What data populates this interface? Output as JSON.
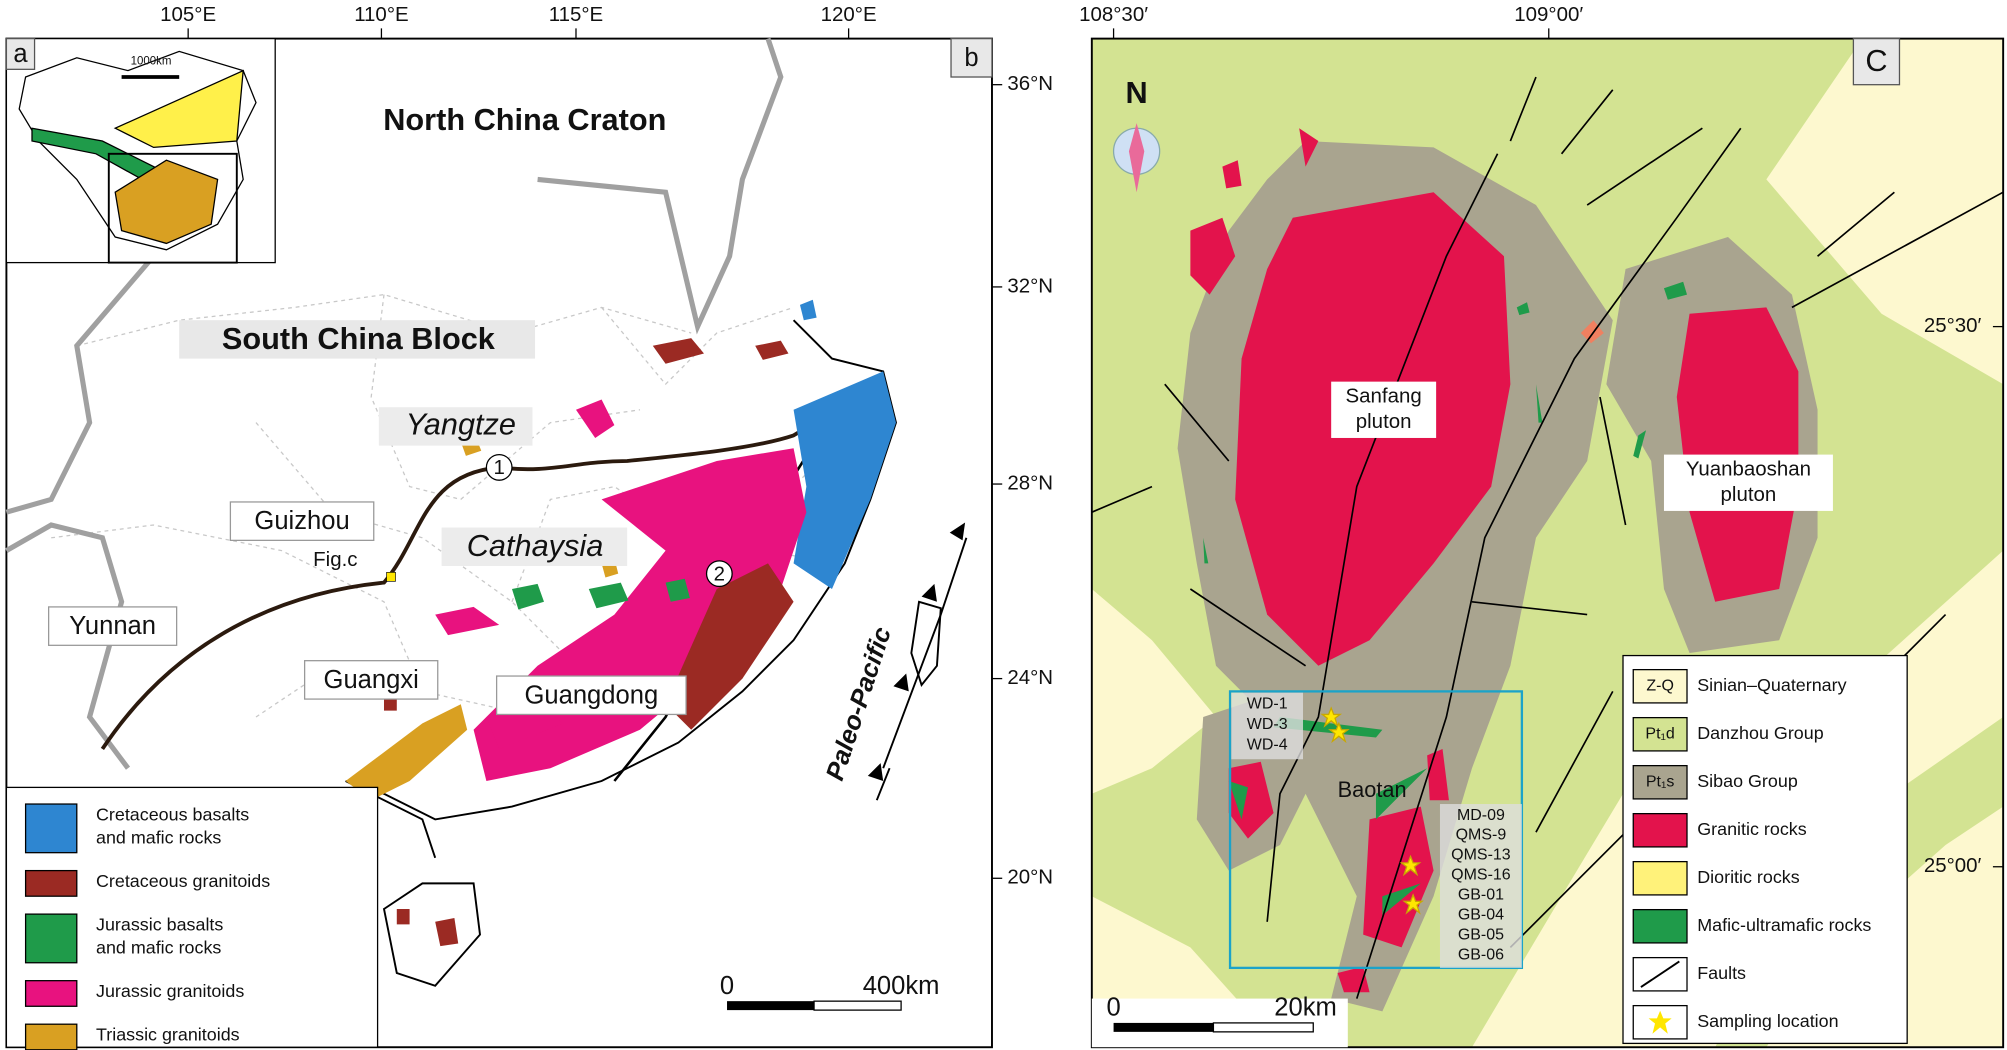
{
  "panel_b": {
    "label_a": "a",
    "label_b": "b",
    "inset_scale": "1000km",
    "lon_ticks": [
      "105°E",
      "110°E",
      "115°E",
      "120°E"
    ],
    "lat_ticks": [
      "36°N",
      "32°N",
      "28°N",
      "24°N",
      "20°N"
    ],
    "places": {
      "craton": "North China Craton",
      "block": "South China Block",
      "yangtze": "Yangtze",
      "cathaysia": "Cathaysia",
      "guizhou": "Guizhou",
      "yunnan": "Yunnan",
      "guangxi": "Guangxi",
      "guangdong": "Guangdong",
      "figc": "Fig.c",
      "pacific": "Paleo-Pacific",
      "one": "1",
      "two": "2"
    },
    "scale": [
      "0",
      "400km"
    ],
    "legend": [
      {
        "label": [
          "Cretaceous basalts",
          "and mafic rocks"
        ],
        "color": "#2e86d1"
      },
      {
        "label": [
          "Cretaceous granitoids"
        ],
        "color": "#9b2a23"
      },
      {
        "label": [
          "Jurassic basalts",
          "and mafic rocks"
        ],
        "color": "#1f9b4a"
      },
      {
        "label": [
          "Jurassic granitoids"
        ],
        "color": "#e8127f"
      },
      {
        "label": [
          "Triassic granitoids"
        ],
        "color": "#d9a022"
      }
    ]
  },
  "panel_c": {
    "label": "C",
    "north": "N",
    "lon_ticks": [
      "108°30′",
      "109°00′"
    ],
    "lat_ticks": [
      "25°30′",
      "25°00′"
    ],
    "sanfang": [
      "Sanfang",
      "pluton"
    ],
    "yuanbaoshan": [
      "Yuanbaoshan",
      "pluton"
    ],
    "baotan": "Baotan",
    "samples_north": [
      "WD-1",
      "WD-3",
      "WD-4"
    ],
    "samples_south": [
      "MD-09",
      "QMS-9",
      "QMS-13",
      "QMS-16",
      "GB-01",
      "GB-04",
      "GB-05",
      "GB-06"
    ],
    "scale": [
      "0",
      "20km"
    ],
    "legend": [
      {
        "symbol": "Z-Q",
        "label": "Sinian–Quaternary",
        "color": "#fdf8cf"
      },
      {
        "symbol": "Pt₁d",
        "label": "Danzhou Group",
        "color": "#d3e392"
      },
      {
        "symbol": "Pt₁s",
        "label": "Sibao Group",
        "color": "#a9a48f"
      },
      {
        "label": "Granitic rocks",
        "color": "#e3134c"
      },
      {
        "label": "Dioritic rocks",
        "color": "#fff27a"
      },
      {
        "label": "Mafic-ultramafic rocks",
        "color": "#1f9b4a"
      },
      {
        "label": "Faults"
      },
      {
        "label": "Sampling location"
      }
    ]
  }
}
